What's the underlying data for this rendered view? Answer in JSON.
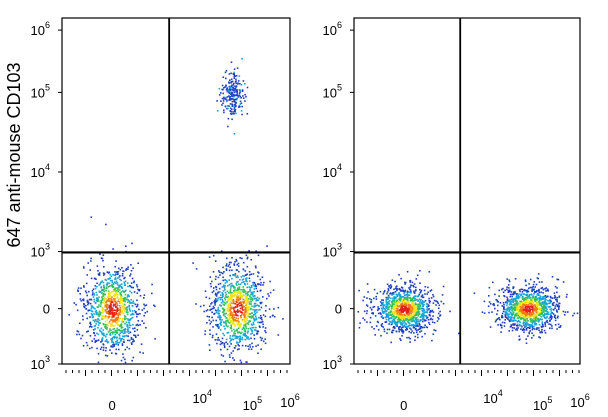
{
  "chart_data": [
    {
      "type": "scatter",
      "style": "flow-cytometry-density-dot-plot",
      "ylabel": "647 anti-mouse CD103",
      "xlabel": "",
      "x_scale": "biexponential",
      "y_scale": "biexponential",
      "xlim": [
        -1000,
        1000000
      ],
      "ylim": [
        -1000,
        1000000
      ],
      "x_tick_labels": [
        {
          "base": "0",
          "exp": ""
        },
        {
          "base": "10",
          "exp": "4"
        },
        {
          "base": "10",
          "exp": "5"
        },
        {
          "base": "10",
          "exp": "6"
        }
      ],
      "y_tick_labels": [
        {
          "base": "10",
          "exp": "6"
        },
        {
          "base": "10",
          "exp": "5"
        },
        {
          "base": "10",
          "exp": "4"
        },
        {
          "base": "10",
          "exp": "3"
        },
        {
          "base": "0",
          "exp": ""
        },
        {
          "base": "10",
          "exp": "3"
        }
      ],
      "quadrant_gate": {
        "x": 2500,
        "y": 900
      },
      "populations": [
        {
          "x_center": 0,
          "y_center": 0,
          "relative_size": 0.45
        },
        {
          "x_center": 50000,
          "y_center": 0,
          "relative_size": 0.45
        },
        {
          "x_center": 40000,
          "y_center": 30000,
          "relative_size": 0.1,
          "shape": "vertical-streak"
        }
      ],
      "density_colors": [
        "#1f3fbf",
        "#18a4d8",
        "#34c060",
        "#f2e21a",
        "#ef7a1a",
        "#e0201a"
      ]
    },
    {
      "type": "scatter",
      "style": "flow-cytometry-density-dot-plot",
      "xlabel": "",
      "ylabel": "",
      "x_scale": "biexponential",
      "y_scale": "biexponential",
      "xlim": [
        -1000,
        1000000
      ],
      "ylim": [
        -1000,
        1000000
      ],
      "x_tick_labels": [
        {
          "base": "0",
          "exp": ""
        },
        {
          "base": "10",
          "exp": "4"
        },
        {
          "base": "10",
          "exp": "5"
        },
        {
          "base": "10",
          "exp": "6"
        }
      ],
      "y_tick_labels": [
        {
          "base": "10",
          "exp": "6"
        },
        {
          "base": "10",
          "exp": "5"
        },
        {
          "base": "10",
          "exp": "4"
        },
        {
          "base": "10",
          "exp": "3"
        },
        {
          "base": "0",
          "exp": ""
        },
        {
          "base": "10",
          "exp": "3"
        }
      ],
      "quadrant_gate": {
        "x": 2500,
        "y": 900
      },
      "populations": [
        {
          "x_center": 0,
          "y_center": 0,
          "relative_size": 0.5
        },
        {
          "x_center": 50000,
          "y_center": 0,
          "relative_size": 0.5
        }
      ],
      "density_colors": [
        "#1f3fbf",
        "#18a4d8",
        "#34c060",
        "#f2e21a",
        "#ef7a1a",
        "#e0201a"
      ]
    }
  ]
}
